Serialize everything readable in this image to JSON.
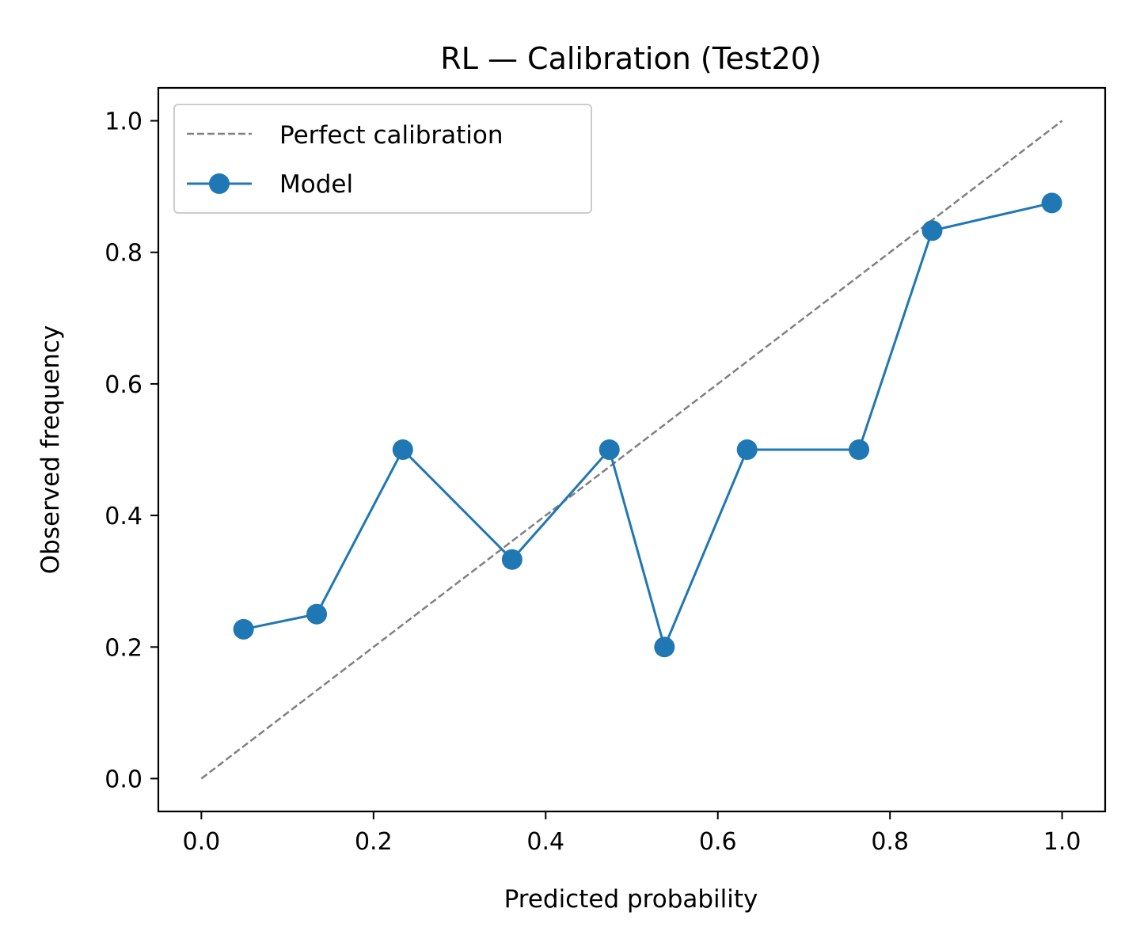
{
  "chart_data": {
    "type": "line",
    "title": "RL — Calibration (Test20)",
    "xlabel": "Predicted probability",
    "ylabel": "Observed frequency",
    "xlim": [
      -0.05,
      1.05
    ],
    "ylim": [
      -0.05,
      1.05
    ],
    "xticks": [
      "0.0",
      "0.2",
      "0.4",
      "0.6",
      "0.8",
      "1.0"
    ],
    "yticks": [
      "0.0",
      "0.2",
      "0.4",
      "0.6",
      "0.8",
      "1.0"
    ],
    "grid": false,
    "legend_position": "top-left",
    "series": [
      {
        "name": "Perfect calibration",
        "style": "dashed",
        "color": "#808080",
        "x": [
          0.0,
          1.0
        ],
        "y": [
          0.0,
          1.0
        ]
      },
      {
        "name": "Model",
        "style": "solid-with-markers",
        "color": "#1f77b4",
        "x": [
          0.049,
          0.134,
          0.234,
          0.361,
          0.474,
          0.538,
          0.634,
          0.764,
          0.849,
          0.988
        ],
        "y": [
          0.227,
          0.25,
          0.5,
          0.333,
          0.5,
          0.2,
          0.5,
          0.5,
          0.833,
          0.875
        ]
      }
    ]
  }
}
